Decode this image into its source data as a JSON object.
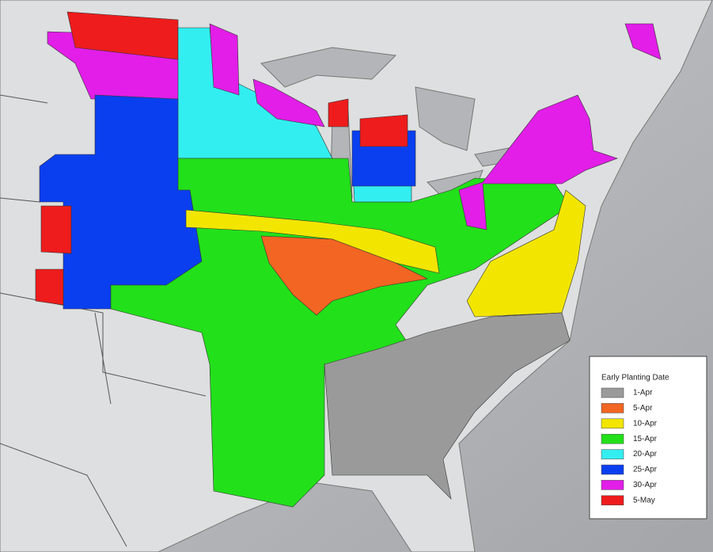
{
  "legend": {
    "title": "Early Planting Date",
    "items": [
      {
        "label": "1-Apr",
        "color": "#9a9a9a"
      },
      {
        "label": "5-Apr",
        "color": "#f26522"
      },
      {
        "label": "10-Apr",
        "color": "#f2e600"
      },
      {
        "label": "15-Apr",
        "color": "#22e01a"
      },
      {
        "label": "20-Apr",
        "color": "#33eef0"
      },
      {
        "label": "25-Apr",
        "color": "#0a3ff0"
      },
      {
        "label": "30-Apr",
        "color": "#e21ee8"
      },
      {
        "label": "5-May",
        "color": "#ee1c1c"
      }
    ]
  }
}
